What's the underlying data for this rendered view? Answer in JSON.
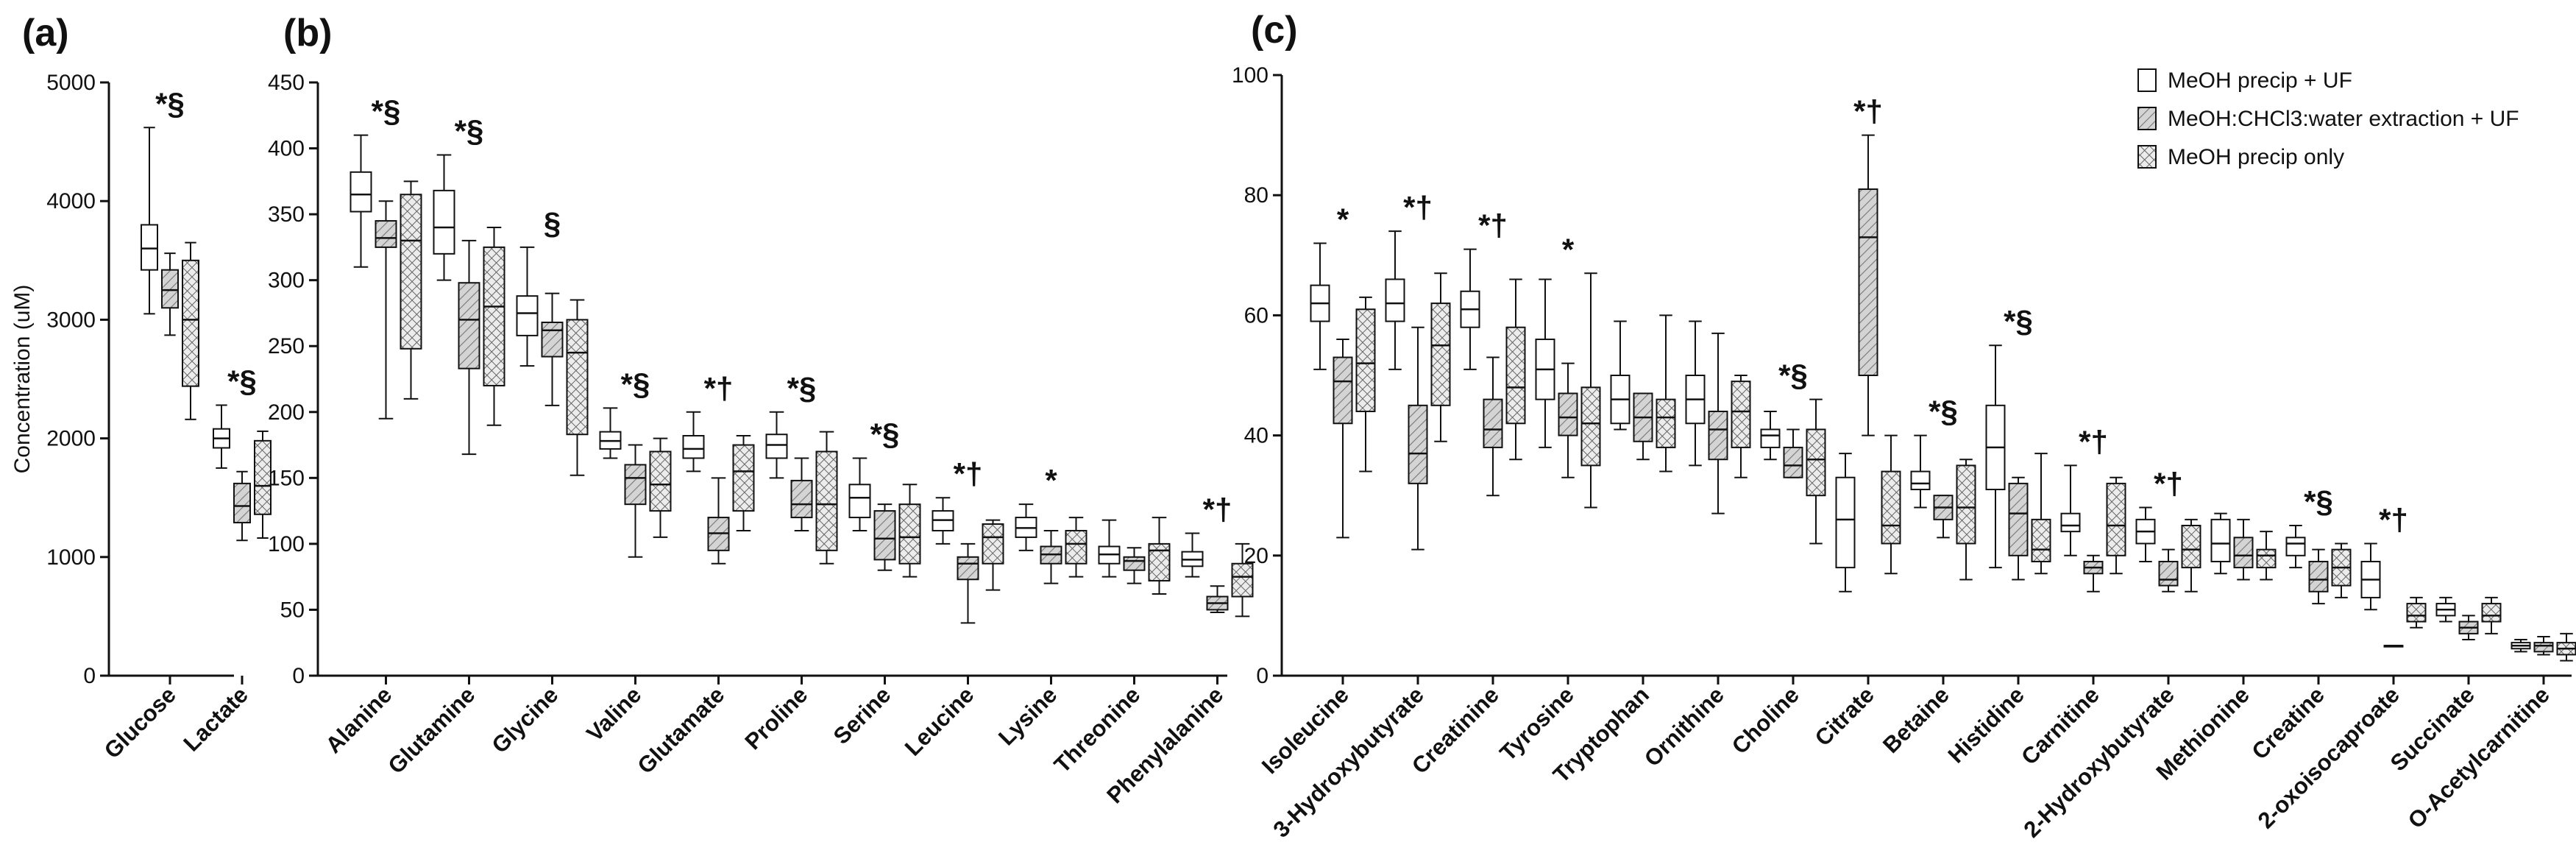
{
  "colors": {
    "ink": "#111111",
    "hatch_fill": "#d4d4d4",
    "box_white": "#ffffff"
  },
  "legend": [
    {
      "name": "MeOH precip + UF",
      "pattern": "plain"
    },
    {
      "name": "MeOH:CHCl3:water extraction + UF",
      "pattern": "diagonal-hatch"
    },
    {
      "name": "MeOH precip only",
      "pattern": "cross-hatch"
    }
  ],
  "chart_data": [
    {
      "panel": "(a)",
      "type": "boxplot",
      "ylabel": "Concentration (uM)",
      "ylim": [
        0,
        5000
      ],
      "yticks": [
        "0",
        "1000",
        "2000",
        "3000",
        "4000",
        "5000"
      ],
      "categories": [
        "Glucose",
        "Lactate"
      ],
      "significance": [
        "*§",
        "*§"
      ],
      "series": [
        {
          "name": "MeOH precip + UF",
          "boxes": [
            [
              3050,
              3420,
              3600,
              3800,
              4620
            ],
            [
              1750,
              1920,
              2000,
              2080,
              2280
            ]
          ]
        },
        {
          "name": "MeOH:CHCl3:water extraction + UF",
          "boxes": [
            [
              2870,
              3100,
              3250,
              3420,
              3560
            ],
            [
              1140,
              1290,
              1430,
              1620,
              1720
            ]
          ]
        },
        {
          "name": "MeOH precip only",
          "boxes": [
            [
              2160,
              2440,
              3000,
              3500,
              3650
            ],
            [
              1160,
              1360,
              1600,
              1980,
              2060
            ]
          ]
        }
      ]
    },
    {
      "panel": "(b)",
      "type": "boxplot",
      "ylabel": "",
      "ylim": [
        0,
        450
      ],
      "yticks": [
        "0",
        "50",
        "100",
        "150",
        "200",
        "250",
        "300",
        "350",
        "400",
        "450"
      ],
      "categories": [
        "Alanine",
        "Glutamine",
        "Glycine",
        "Valine",
        "Glutamate",
        "Proline",
        "Serine",
        "Leucine",
        "Lysine",
        "Threonine",
        "Phenylalanine"
      ],
      "significance": [
        "*§",
        "*§",
        "§",
        "*§",
        "*†",
        "*§",
        "*§",
        "*†",
        "*",
        "",
        "*†"
      ],
      "series": [
        {
          "name": "MeOH precip + UF",
          "boxes": [
            [
              310,
              352,
              365,
              382,
              410
            ],
            [
              300,
              320,
              340,
              368,
              395
            ],
            [
              235,
              258,
              275,
              288,
              325
            ],
            [
              165,
              172,
              178,
              185,
              203
            ],
            [
              155,
              165,
              172,
              182,
              200
            ],
            [
              150,
              165,
              175,
              183,
              200
            ],
            [
              110,
              120,
              135,
              145,
              165
            ],
            [
              100,
              110,
              118,
              125,
              135
            ],
            [
              95,
              105,
              112,
              120,
              130
            ],
            [
              75,
              85,
              92,
              98,
              118
            ],
            [
              75,
              83,
              88,
              94,
              108
            ]
          ]
        },
        {
          "name": "MeOH:CHCl3:water extraction + UF",
          "boxes": [
            [
              195,
              325,
              332,
              345,
              360
            ],
            [
              168,
              233,
              270,
              298,
              330
            ],
            [
              205,
              242,
              262,
              268,
              290
            ],
            [
              90,
              130,
              150,
              160,
              175
            ],
            [
              85,
              95,
              108,
              120,
              150
            ],
            [
              110,
              120,
              130,
              148,
              165
            ],
            [
              80,
              88,
              104,
              125,
              130
            ],
            [
              40,
              73,
              85,
              90,
              100
            ],
            [
              70,
              85,
              92,
              98,
              110
            ],
            [
              70,
              80,
              87,
              90,
              97
            ],
            [
              48,
              50,
              55,
              60,
              68
            ]
          ]
        },
        {
          "name": "MeOH precip only",
          "boxes": [
            [
              210,
              248,
              330,
              365,
              375
            ],
            [
              190,
              220,
              280,
              325,
              340
            ],
            [
              152,
              183,
              245,
              270,
              285
            ],
            [
              105,
              125,
              145,
              170,
              180
            ],
            [
              110,
              125,
              155,
              175,
              182
            ],
            [
              85,
              95,
              130,
              170,
              185
            ],
            [
              75,
              85,
              105,
              130,
              145
            ],
            [
              65,
              85,
              105,
              115,
              118
            ],
            [
              75,
              85,
              100,
              110,
              120
            ],
            [
              62,
              72,
              95,
              100,
              120
            ],
            [
              45,
              60,
              75,
              85,
              100
            ]
          ]
        }
      ]
    },
    {
      "panel": "(c)",
      "type": "boxplot",
      "ylabel": "",
      "ylim": [
        0,
        100
      ],
      "yticks": [
        "0",
        "20",
        "40",
        "60",
        "80",
        "100"
      ],
      "categories": [
        "Isoleucine",
        "3-Hydroxybutyrate",
        "Creatinine",
        "Tyrosine",
        "Tryptophan",
        "Ornithine",
        "Choline",
        "Citrate",
        "Betaine",
        "Histidine",
        "Carnitine",
        "2-Hydroxybutyrate",
        "Methionine",
        "Creatine",
        "2-oxoisocaproate",
        "Succinate",
        "O-Acetylcarnitine"
      ],
      "significance": [
        "*",
        "*†",
        "*†",
        "*",
        "",
        "",
        "*§",
        "*†",
        "*§",
        "*§",
        "*†",
        "*†",
        "",
        "*§",
        "*†",
        "",
        ""
      ],
      "series": [
        {
          "name": "MeOH precip + UF",
          "boxes": [
            [
              51,
              59,
              62,
              65,
              72
            ],
            [
              51,
              59,
              62,
              66,
              74
            ],
            [
              51,
              58,
              61,
              64,
              71
            ],
            [
              38,
              46,
              51,
              56,
              66
            ],
            [
              41,
              42,
              46,
              50,
              59
            ],
            [
              35,
              42,
              46,
              50,
              59
            ],
            [
              36,
              38,
              40,
              41,
              44
            ],
            [
              14,
              18,
              26,
              33,
              37
            ],
            [
              28,
              31,
              32,
              34,
              40
            ],
            [
              18,
              31,
              38,
              45,
              55
            ],
            [
              20,
              24,
              25,
              27,
              35
            ],
            [
              19,
              22,
              24,
              26,
              28
            ],
            [
              17,
              19,
              22,
              26,
              27
            ],
            [
              18,
              20,
              22,
              23,
              25
            ],
            [
              11,
              13,
              16,
              19,
              22
            ],
            [
              9,
              10,
              11,
              12,
              13
            ],
            [
              4,
              4.5,
              5,
              5.5,
              6
            ]
          ]
        },
        {
          "name": "MeOH:CHCl3:water extraction + UF",
          "boxes": [
            [
              23,
              42,
              49,
              53,
              56
            ],
            [
              21,
              32,
              37,
              45,
              58
            ],
            [
              30,
              38,
              41,
              46,
              53
            ],
            [
              33,
              40,
              43,
              47,
              52
            ],
            [
              36,
              39,
              43,
              47,
              47
            ],
            [
              27,
              36,
              41,
              44,
              57
            ],
            [
              33,
              33,
              35,
              38,
              41
            ],
            [
              40,
              50,
              73,
              81,
              90
            ],
            [
              23,
              26,
              28,
              30,
              30
            ],
            [
              16,
              20,
              27,
              32,
              33
            ],
            [
              14,
              17,
              18,
              19,
              20
            ],
            [
              14,
              15,
              16,
              19,
              21
            ],
            [
              16,
              18,
              20,
              23,
              26
            ],
            [
              12,
              14,
              16,
              19,
              21
            ],
            [
              5,
              5,
              5,
              5,
              5
            ],
            [
              6,
              7,
              8,
              9,
              10
            ],
            [
              3.5,
              4,
              5,
              5.5,
              6.5
            ]
          ]
        },
        {
          "name": "MeOH precip only",
          "boxes": [
            [
              34,
              44,
              52,
              61,
              63
            ],
            [
              39,
              45,
              55,
              62,
              67
            ],
            [
              36,
              42,
              48,
              58,
              66
            ],
            [
              28,
              35,
              42,
              48,
              67
            ],
            [
              34,
              38,
              43,
              46,
              60
            ],
            [
              33,
              38,
              44,
              49,
              50
            ],
            [
              22,
              30,
              36,
              41,
              46
            ],
            [
              17,
              22,
              25,
              34,
              40
            ],
            [
              16,
              22,
              28,
              35,
              36
            ],
            [
              17,
              19,
              21,
              26,
              37
            ],
            [
              17,
              20,
              25,
              32,
              33
            ],
            [
              14,
              18,
              21,
              25,
              26
            ],
            [
              16,
              18,
              20,
              21,
              24
            ],
            [
              13,
              15,
              18,
              21,
              22
            ],
            [
              8,
              9,
              10,
              12,
              13
            ],
            [
              7,
              9,
              10,
              12,
              13
            ],
            [
              2.5,
              3.5,
              4.5,
              5.5,
              7
            ]
          ]
        }
      ]
    }
  ]
}
